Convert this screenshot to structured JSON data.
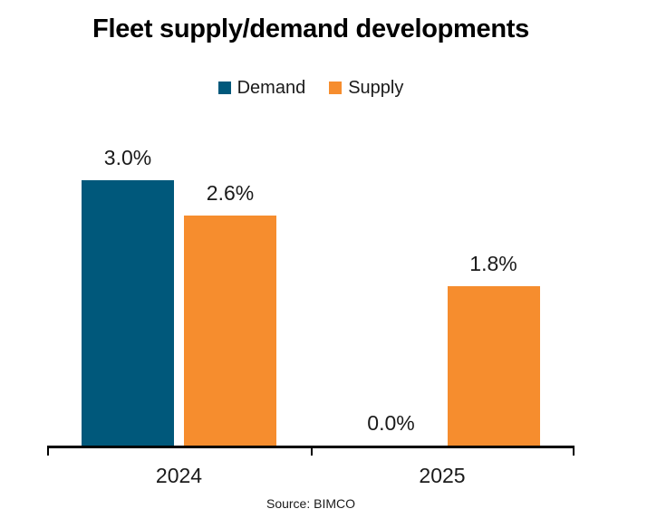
{
  "chart_data": {
    "type": "bar",
    "title": "Fleet supply/demand developments",
    "categories": [
      "2024",
      "2025"
    ],
    "series": [
      {
        "name": "Demand",
        "color": "#00587B",
        "values": [
          3.0,
          0.0
        ],
        "data_labels": [
          "3.0%",
          "0.0%"
        ]
      },
      {
        "name": "Supply",
        "color": "#F68D2E",
        "values": [
          2.6,
          1.8
        ],
        "data_labels": [
          "2.6%",
          "1.8%"
        ]
      }
    ],
    "xlabel": "",
    "ylabel": "",
    "ylim": [
      0,
      3.2
    ],
    "grid": false,
    "y_axis_visible": false,
    "legend_position": "top",
    "value_format": "percent",
    "source": "Source: BIMCO"
  }
}
